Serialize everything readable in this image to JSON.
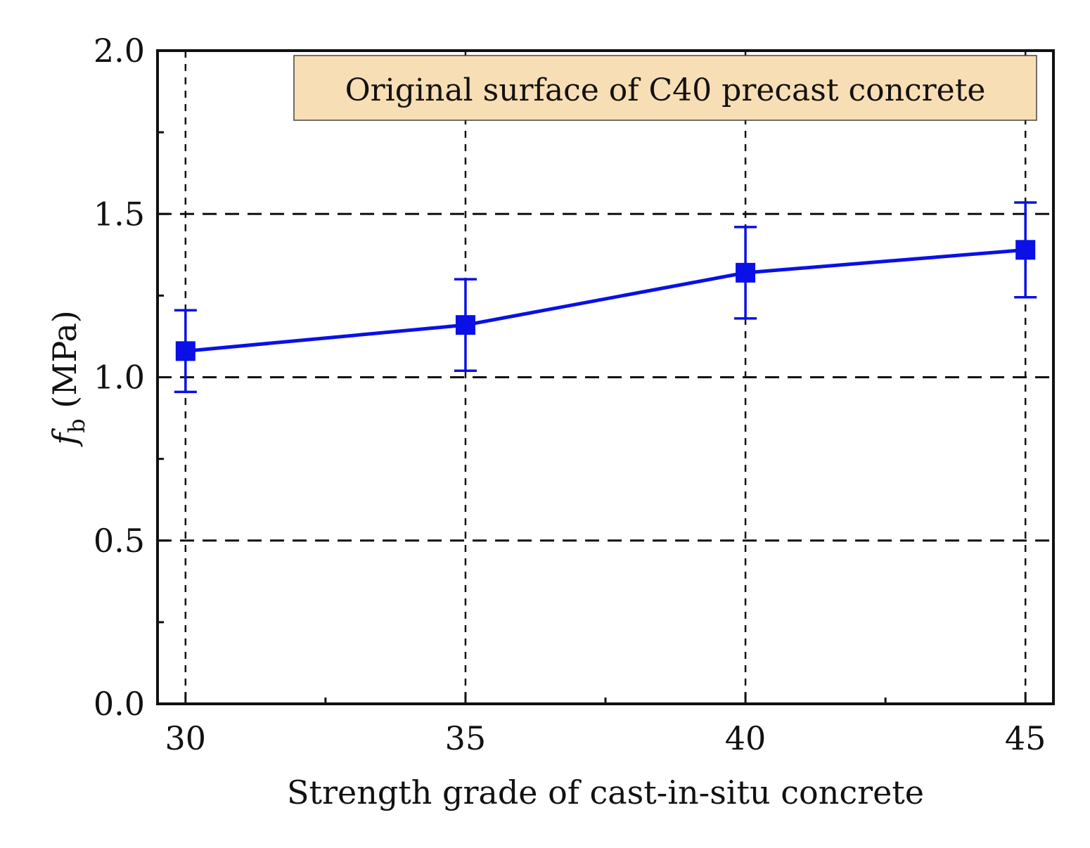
{
  "chart_data": {
    "type": "line",
    "x": [
      30,
      35,
      40,
      45
    ],
    "series": [
      {
        "name": "f_b",
        "values": [
          1.08,
          1.16,
          1.32,
          1.39
        ],
        "error": [
          0.125,
          0.14,
          0.14,
          0.145
        ],
        "color": "#0a10e6",
        "marker": "square"
      }
    ],
    "xlim": [
      29.5,
      45.5
    ],
    "ylim": [
      0.0,
      2.0
    ],
    "xticks": [
      "30",
      "35",
      "40",
      "45"
    ],
    "xtick_values": [
      30,
      35,
      40,
      45
    ],
    "yticks": [
      "0.0",
      "0.5",
      "1.0",
      "1.5",
      "2.0"
    ],
    "ytick_values": [
      0.0,
      0.5,
      1.0,
      1.5,
      2.0
    ],
    "xlabel": "Strength grade of cast-in-situ concrete",
    "ylabel_symbol": "f",
    "ylabel_subscript": "b",
    "ylabel_unit": "(MPa)",
    "annotation": "Original surface of C40 precast concrete",
    "annotation_bg": "#f8deb4",
    "grid": true
  }
}
